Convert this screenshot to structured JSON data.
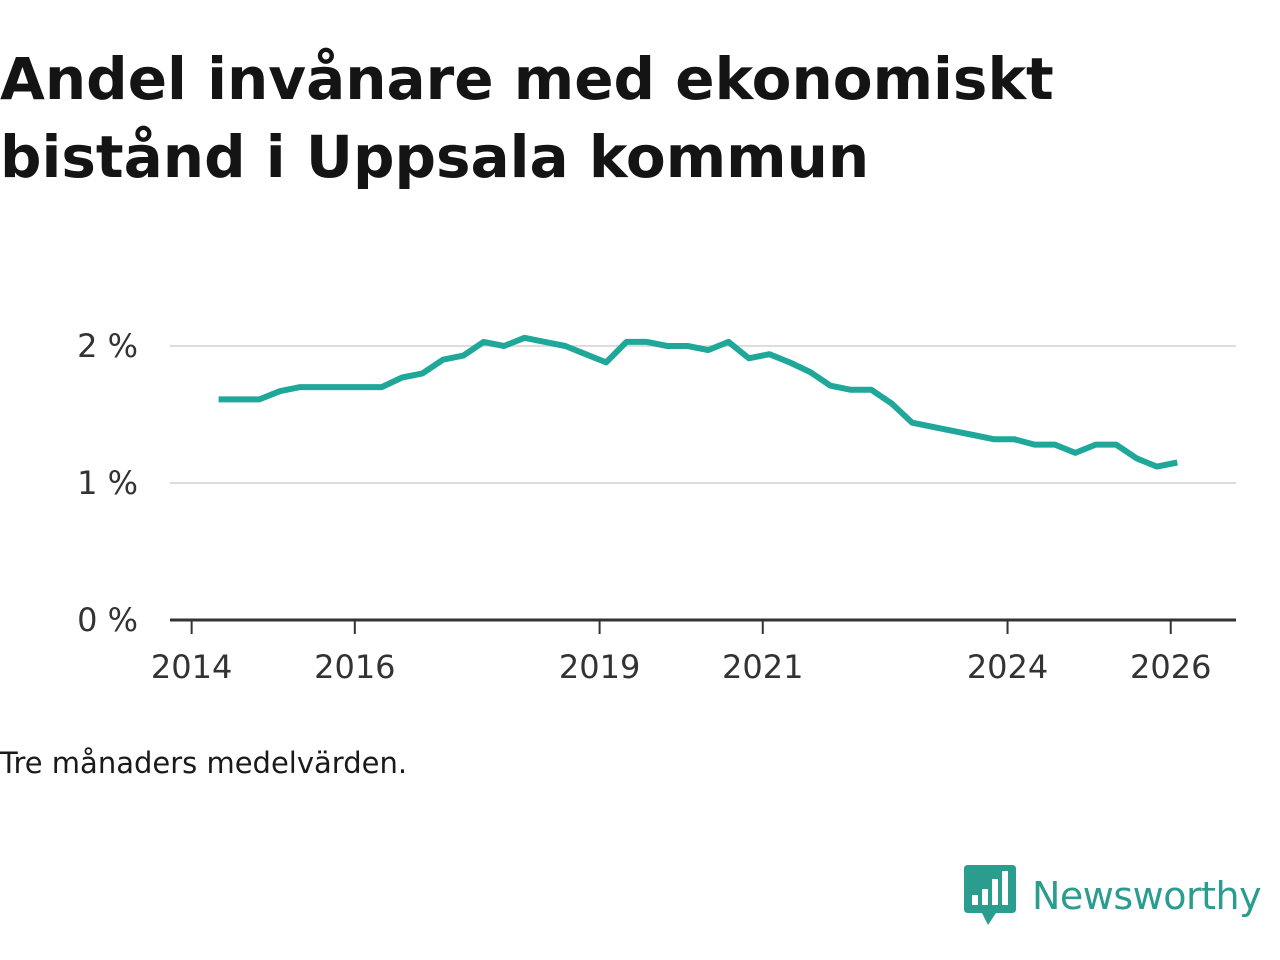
{
  "title": "Andel invånare med ekonomiskt bistånd i Uppsala kommun",
  "note": "Tre månaders medelvärden.",
  "brand": {
    "name": "Newsworthy",
    "icon": "newsworthy-chart-icon"
  },
  "colors": {
    "line": "#1fa89a",
    "grid": "#dddddd",
    "axis": "#333333",
    "brand": "#2a9d8f"
  },
  "chart_data": {
    "type": "line",
    "title": "Andel invånare med ekonomiskt bistånd i Uppsala kommun",
    "xlabel": "",
    "ylabel": "",
    "xlim": [
      2013.98,
      2026.8
    ],
    "ylim": [
      0,
      2.0
    ],
    "x_ticks": [
      2014,
      2016,
      2019,
      2021,
      2024,
      2026
    ],
    "y_ticks": [
      {
        "value": 0,
        "label": "0 %"
      },
      {
        "value": 1,
        "label": "1 %"
      },
      {
        "value": 2,
        "label": "2 %"
      }
    ],
    "grid": "horizontal",
    "series": [
      {
        "name": "Andel invånare med ekonomiskt bistånd",
        "x": [
          2014.33,
          2014.58,
          2014.83,
          2015.08,
          2015.33,
          2015.58,
          2015.83,
          2016.08,
          2016.33,
          2016.58,
          2016.83,
          2017.08,
          2017.33,
          2017.58,
          2017.83,
          2018.08,
          2018.33,
          2018.58,
          2018.83,
          2019.08,
          2019.33,
          2019.58,
          2019.83,
          2020.08,
          2020.33,
          2020.58,
          2020.83,
          2021.08,
          2021.33,
          2021.58,
          2021.83,
          2022.08,
          2022.33,
          2022.58,
          2022.83,
          2023.08,
          2023.33,
          2023.58,
          2023.83,
          2024.08,
          2024.33,
          2024.58,
          2024.83,
          2025.08,
          2025.33,
          2025.58,
          2025.83,
          2026.08
        ],
        "values": [
          1.61,
          1.61,
          1.61,
          1.67,
          1.7,
          1.7,
          1.7,
          1.7,
          1.7,
          1.77,
          1.8,
          1.9,
          1.93,
          2.03,
          2.0,
          2.06,
          2.03,
          2.0,
          1.94,
          1.88,
          2.03,
          2.03,
          2.0,
          2.0,
          1.97,
          2.03,
          1.91,
          1.94,
          1.88,
          1.81,
          1.71,
          1.68,
          1.68,
          1.58,
          1.44,
          1.41,
          1.38,
          1.35,
          1.32,
          1.32,
          1.28,
          1.28,
          1.22,
          1.28,
          1.28,
          1.18,
          1.12,
          1.15
        ]
      }
    ]
  }
}
